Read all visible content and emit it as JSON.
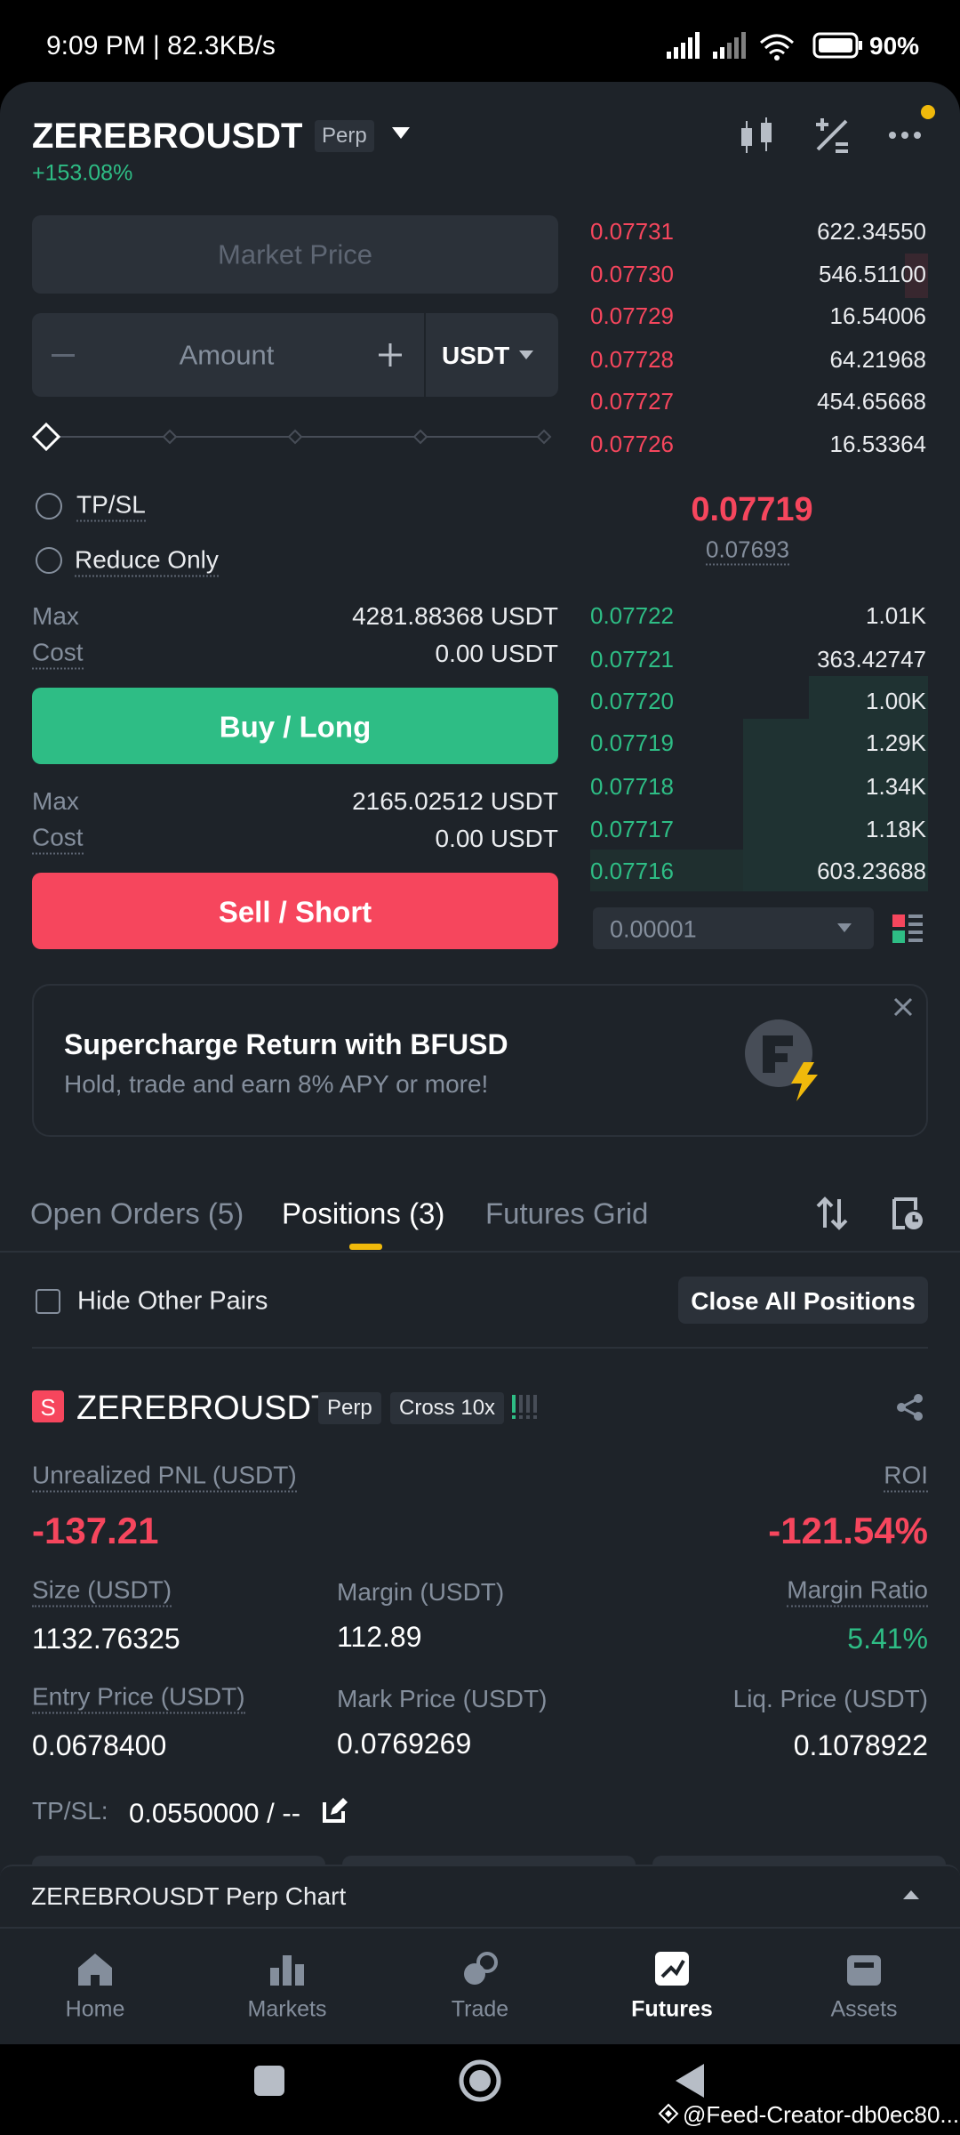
{
  "status_bar": {
    "time": "9:09 PM | 82.3KB/s",
    "battery": "90%"
  },
  "header": {
    "symbol": "ZEREBROUSDT",
    "badge": "Perp",
    "change": "+153.08%"
  },
  "order_form": {
    "price_placeholder": "Market Price",
    "amount_placeholder": "Amount",
    "unit": "USDT",
    "tpsl": "TP/SL",
    "reduce_only": "Reduce Only",
    "buy": {
      "max_label": "Max",
      "max_value": "4281.88368 USDT",
      "cost_label": "Cost",
      "cost_value": "0.00 USDT",
      "button": "Buy / Long"
    },
    "sell": {
      "max_label": "Max",
      "max_value": "2165.02512 USDT",
      "cost_label": "Cost",
      "cost_value": "0.00 USDT",
      "button": "Sell / Short"
    }
  },
  "order_book": {
    "asks": [
      [
        "0.07731",
        "622.34550"
      ],
      [
        "0.07730",
        "546.51100"
      ],
      [
        "0.07729",
        "16.54006"
      ],
      [
        "0.07728",
        "64.21968"
      ],
      [
        "0.07727",
        "454.65668"
      ],
      [
        "0.07726",
        "16.53364"
      ]
    ],
    "last_price": "0.07719",
    "mark_price": "0.07693",
    "bids": [
      [
        "0.07722",
        "1.01K"
      ],
      [
        "0.07721",
        "363.42747"
      ],
      [
        "0.07720",
        "1.00K"
      ],
      [
        "0.07719",
        "1.29K"
      ],
      [
        "0.07718",
        "1.34K"
      ],
      [
        "0.07717",
        "1.18K"
      ],
      [
        "0.07716",
        "603.23688"
      ]
    ],
    "tick_size": "0.00001"
  },
  "banner": {
    "title": "Supercharge Return with BFUSD",
    "subtitle": "Hold, trade and earn 8% APY or more!"
  },
  "tabs": [
    "Open Orders (5)",
    "Positions (3)",
    "Futures Grid"
  ],
  "hide_other_pairs": "Hide Other Pairs",
  "close_all": "Close All Positions",
  "position": {
    "side": "S",
    "symbol": "ZEREBROUSDT",
    "type": "Perp",
    "margin_mode": "Cross 10x",
    "pnl": {
      "label": "Unrealized PNL (USDT)",
      "value": "-137.21"
    },
    "roi": {
      "label": "ROI",
      "value": "-121.54%"
    },
    "size": {
      "label": "Size (USDT)",
      "value": "1132.76325"
    },
    "margin": {
      "label": "Margin (USDT)",
      "value": "112.89"
    },
    "margin_ratio": {
      "label": "Margin Ratio",
      "value": "5.41%"
    },
    "entry_price": {
      "label": "Entry Price (USDT)",
      "value": "0.0678400"
    },
    "mark_price": {
      "label": "Mark Price (USDT)",
      "value": "0.0769269"
    },
    "liq_price": {
      "label": "Liq. Price (USDT)",
      "value": "0.1078922"
    },
    "tpsl": {
      "label": "TP/SL:",
      "value": "0.0550000 / --"
    }
  },
  "chart_bar": "ZEREBROUSDT Perp Chart",
  "nav": [
    "Home",
    "Markets",
    "Trade",
    "Futures",
    "Assets"
  ],
  "watermark": "@Feed-Creator-db0ec80..."
}
